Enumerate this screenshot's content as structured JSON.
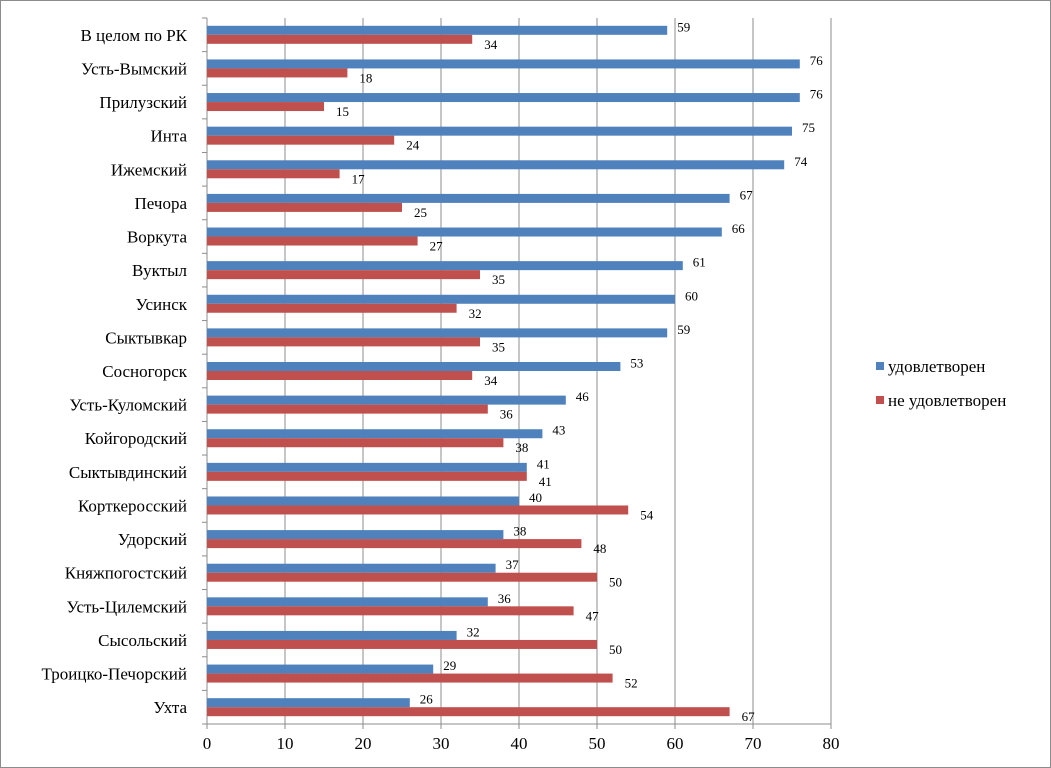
{
  "chart_data": {
    "type": "bar",
    "orientation": "horizontal",
    "categories": [
      "В целом по РК",
      "Усть-Вымский",
      "Прилузский",
      "Инта",
      "Ижемский",
      "Печора",
      "Воркута",
      "Вуктыл",
      "Усинск",
      "Сыктывкар",
      "Сосногорск",
      "Усть-Куломский",
      "Койгородский",
      "Сыктывдинский",
      "Корткеросский",
      "Удорский",
      "Княжпогостский",
      "Усть-Цилемский",
      "Сысольский",
      "Троицко-Печорский",
      "Ухта"
    ],
    "series": [
      {
        "name": "удовлетворен",
        "color": "#4f81bd",
        "values": [
          59,
          76,
          76,
          75,
          74,
          67,
          66,
          61,
          60,
          59,
          53,
          46,
          43,
          41,
          40,
          38,
          37,
          36,
          32,
          29,
          26
        ]
      },
      {
        "name": "не удовлетворен",
        "color": "#c0504d",
        "values": [
          34,
          18,
          15,
          24,
          17,
          25,
          27,
          35,
          32,
          35,
          34,
          36,
          38,
          41,
          54,
          48,
          50,
          47,
          50,
          52,
          67
        ]
      }
    ],
    "xlim": [
      0,
      80
    ],
    "xticks": [
      "0",
      "10",
      "20",
      "30",
      "40",
      "50",
      "60",
      "70",
      "80"
    ],
    "grid": "vertical",
    "legend_position": "right",
    "title": "",
    "xlabel": "",
    "ylabel": ""
  }
}
